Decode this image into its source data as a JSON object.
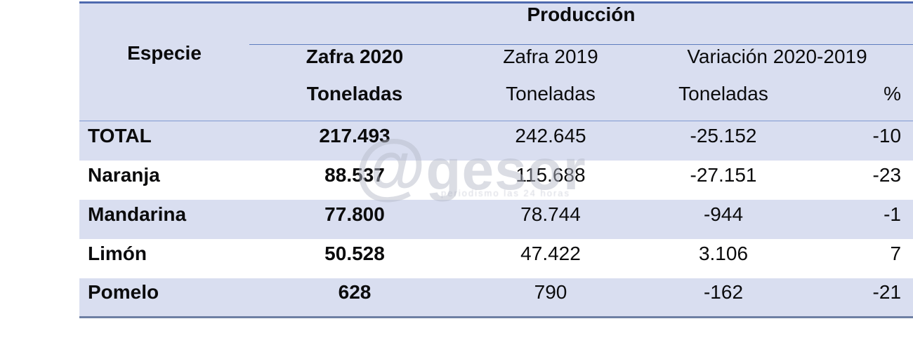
{
  "table": {
    "title": "Producción",
    "especie_header": "Especie",
    "col_headers": {
      "zafra2020": "Zafra 2020",
      "zafra2019": "Zafra 2019",
      "variacion": "Variación 2020-2019",
      "toneladas_2020": "Toneladas",
      "toneladas_2019": "Toneladas",
      "toneladas_variacion": "Toneladas",
      "percent": "%"
    },
    "rows": [
      {
        "especie": "TOTAL",
        "zafra2020": "217.493",
        "zafra2019": "242.645",
        "variacion_toneladas": "-25.152",
        "variacion_pct": "-10"
      },
      {
        "especie": "Naranja",
        "zafra2020": "88.537",
        "zafra2019": "115.688",
        "variacion_toneladas": "-27.151",
        "variacion_pct": "-23"
      },
      {
        "especie": "Mandarina",
        "zafra2020": "77.800",
        "zafra2019": "78.744",
        "variacion_toneladas": "-944",
        "variacion_pct": "-1"
      },
      {
        "especie": "Limón",
        "zafra2020": "50.528",
        "zafra2019": "47.422",
        "variacion_toneladas": "3.106",
        "variacion_pct": "7"
      },
      {
        "especie": "Pomelo",
        "zafra2020": "628",
        "zafra2019": "790",
        "variacion_toneladas": "-162",
        "variacion_pct": "-21"
      }
    ]
  },
  "watermark": {
    "symbol": "@",
    "text": "gesor",
    "tagline": "periodismo las 24 horas"
  },
  "colors": {
    "row_stripe": "#d9def0",
    "top_border": "#4e69ae",
    "bottom_border": "#6e80a4",
    "title_line": "#5e7cbe",
    "head_line": "#7e98d0",
    "text": "#0b0b0c",
    "watermark": "rgba(183,187,202,0.50)",
    "watermark_tagline": "rgba(160,165,185,0.40)"
  },
  "chart_data": {
    "type": "table",
    "title": "Producción",
    "columns": [
      "Especie",
      "Zafra 2020 Toneladas",
      "Zafra 2019 Toneladas",
      "Variación 2020-2019 Toneladas",
      "Variación 2020-2019 %"
    ],
    "rows": [
      [
        "TOTAL",
        217493,
        242645,
        -25152,
        -10
      ],
      [
        "Naranja",
        88537,
        115688,
        -27151,
        -23
      ],
      [
        "Mandarina",
        77800,
        78744,
        -944,
        -1
      ],
      [
        "Limón",
        50528,
        47422,
        3106,
        7
      ],
      [
        "Pomelo",
        628,
        790,
        -162,
        -21
      ]
    ]
  }
}
